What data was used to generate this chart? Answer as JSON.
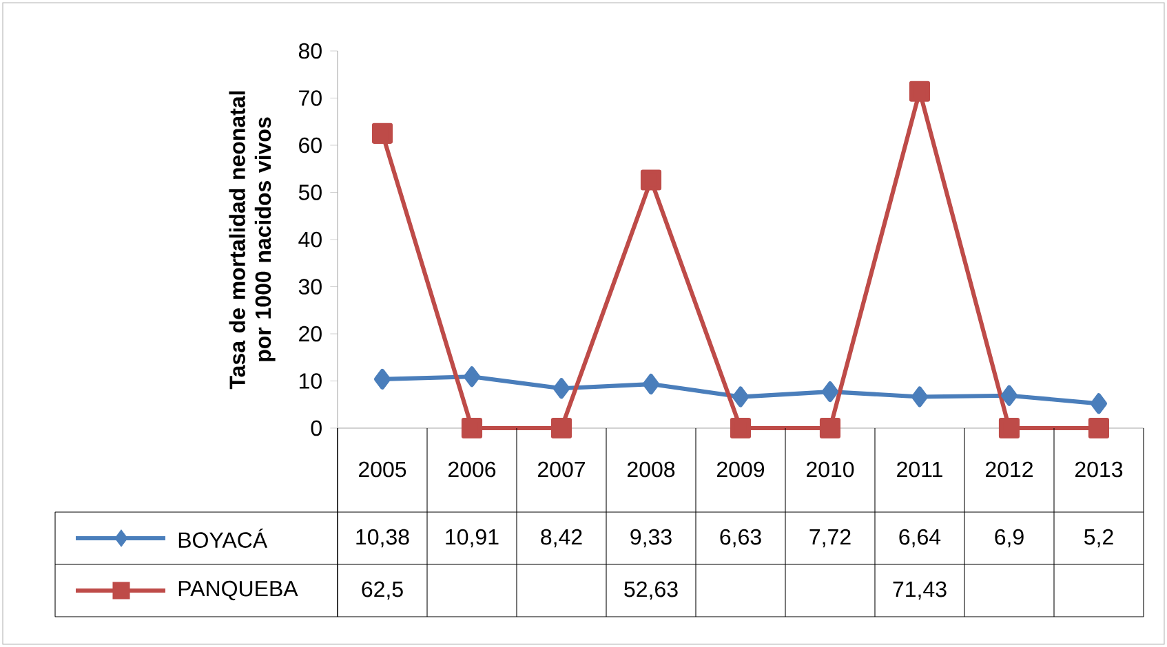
{
  "chart_data": {
    "type": "line",
    "ylabel": "Tasa de mortalidad neonatal por 1000 nacidos vivos",
    "categories": [
      "2005",
      "2006",
      "2007",
      "2008",
      "2009",
      "2010",
      "2011",
      "2012",
      "2013"
    ],
    "series": [
      {
        "name": "BOYACÁ",
        "color": "#4a7ebb",
        "marker": "diamond",
        "values": [
          10.38,
          10.91,
          8.42,
          9.33,
          6.63,
          7.72,
          6.64,
          6.9,
          5.2
        ],
        "value_labels": [
          "10,38",
          "10,91",
          "8,42",
          "9,33",
          "6,63",
          "7,72",
          "6,64",
          "6,9",
          "5,2"
        ]
      },
      {
        "name": "PANQUEBA",
        "color": "#be4b48",
        "marker": "square",
        "values": [
          62.5,
          0,
          0,
          52.63,
          0,
          0,
          71.43,
          0,
          0
        ],
        "value_labels": [
          "62,5",
          null,
          null,
          "52,63",
          null,
          null,
          "71,43",
          null,
          null
        ]
      }
    ],
    "ylim": [
      0,
      80
    ],
    "yticks": [
      0,
      10,
      20,
      30,
      40,
      50,
      60,
      70,
      80
    ],
    "grid": false,
    "legend": "left",
    "line_style": "solid"
  }
}
